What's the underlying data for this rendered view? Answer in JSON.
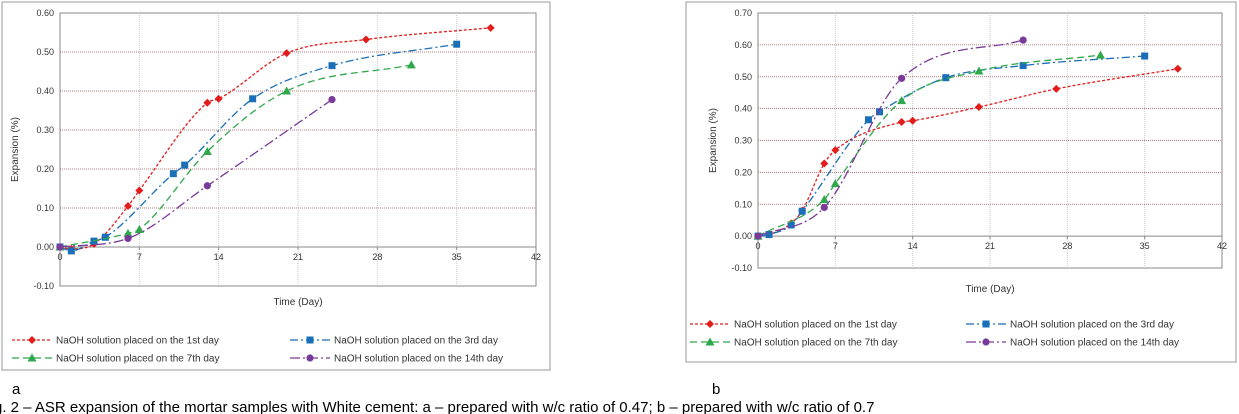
{
  "caption": "g. 2 – ASR expansion of the mortar samples with White cement: a – prepared with w/c ratio of 0.47; b – prepared with w/c ratio of 0.7",
  "colors": {
    "series": [
      "#e31b1b",
      "#1a6fb8",
      "#2ea84a",
      "#7a3a9a"
    ],
    "gridline_major": "#a05050",
    "gridline_minor": "#bdbdbd"
  },
  "chart_data": [
    {
      "type": "line",
      "panel_label": "a",
      "xlabel": "Time (Day)",
      "ylabel": "Expansion (%)",
      "xlim": [
        0,
        42
      ],
      "ylim": [
        -0.1,
        0.6
      ],
      "xticks": [
        0,
        7,
        14,
        21,
        28,
        35,
        42
      ],
      "yticks": [
        -0.1,
        0.0,
        0.1,
        0.2,
        0.3,
        0.4,
        0.5,
        0.6
      ],
      "ytick_labels": [
        "-0.10",
        "0.00",
        "0.10",
        "0.20",
        "0.30",
        "0.40",
        "0.50",
        "0.60"
      ],
      "xtick_labels": [
        "0",
        "7",
        "14",
        "21",
        "28",
        "35",
        "42"
      ],
      "grid": true,
      "legend_position": "bottom",
      "series": [
        {
          "name": "NaOH solution placed on the 1st day",
          "marker": "diamond",
          "dash": "3,2",
          "x": [
            0,
            1,
            3,
            6,
            7,
            13,
            14,
            20,
            27,
            38
          ],
          "y": [
            0.0,
            -0.005,
            0.008,
            0.105,
            0.145,
            0.37,
            0.38,
            0.497,
            0.532,
            0.562
          ]
        },
        {
          "name": "NaOH solution placed on the 3rd day",
          "marker": "square",
          "dash": "8,3,2,3",
          "x": [
            0,
            1,
            3,
            4,
            10,
            11,
            17,
            24,
            35
          ],
          "y": [
            0.0,
            -0.01,
            0.015,
            0.025,
            0.188,
            0.21,
            0.38,
            0.465,
            0.52
          ]
        },
        {
          "name": "NaOH solution placed on the 7th day",
          "marker": "triangle",
          "dash": "7,4",
          "x": [
            0,
            6,
            7,
            13,
            20,
            31
          ],
          "y": [
            0.0,
            0.035,
            0.045,
            0.245,
            0.4,
            0.467
          ]
        },
        {
          "name": "NaOH solution placed on the 14th day",
          "marker": "circle",
          "dash": "10,3,2,3",
          "x": [
            0,
            6,
            13,
            24
          ],
          "y": [
            0.0,
            0.022,
            0.157,
            0.378
          ]
        }
      ]
    },
    {
      "type": "line",
      "panel_label": "b",
      "xlabel": "Time (Day)",
      "ylabel": "Expansion (%)",
      "xlim": [
        0,
        42
      ],
      "ylim": [
        -0.1,
        0.7
      ],
      "xticks": [
        0,
        7,
        14,
        21,
        28,
        35,
        42
      ],
      "yticks": [
        -0.1,
        0.0,
        0.1,
        0.2,
        0.3,
        0.4,
        0.5,
        0.6,
        0.7
      ],
      "ytick_labels": [
        "-0.10",
        "0.00",
        "0.10",
        "0.20",
        "0.30",
        "0.40",
        "0.50",
        "0.60",
        "0.70"
      ],
      "xtick_labels": [
        "0",
        "7",
        "14",
        "21",
        "28",
        "35",
        "42"
      ],
      "grid": true,
      "legend_position": "bottom",
      "series": [
        {
          "name": "NaOH solution placed on the 1st day",
          "marker": "diamond",
          "dash": "3,2",
          "x": [
            0,
            1,
            3,
            4,
            6,
            7,
            13,
            14,
            20,
            27,
            38
          ],
          "y": [
            0.0,
            0.005,
            0.04,
            0.08,
            0.228,
            0.27,
            0.358,
            0.362,
            0.405,
            0.462,
            0.525
          ]
        },
        {
          "name": "NaOH solution placed on the 3rd day",
          "marker": "square",
          "dash": "8,3,2,3",
          "x": [
            0,
            1,
            3,
            4,
            10,
            11,
            17,
            24,
            35
          ],
          "y": [
            0.0,
            0.005,
            0.035,
            0.078,
            0.365,
            0.39,
            0.497,
            0.535,
            0.565
          ]
        },
        {
          "name": "NaOH solution placed on the 7th day",
          "marker": "triangle",
          "dash": "7,4",
          "x": [
            0,
            6,
            7,
            13,
            20,
            31
          ],
          "y": [
            0.0,
            0.115,
            0.165,
            0.425,
            0.518,
            0.568
          ]
        },
        {
          "name": "NaOH solution placed on the 14th day",
          "marker": "circle",
          "dash": "10,3,2,3",
          "x": [
            0,
            6,
            13,
            24
          ],
          "y": [
            0.0,
            0.09,
            0.495,
            0.615
          ]
        }
      ]
    }
  ]
}
